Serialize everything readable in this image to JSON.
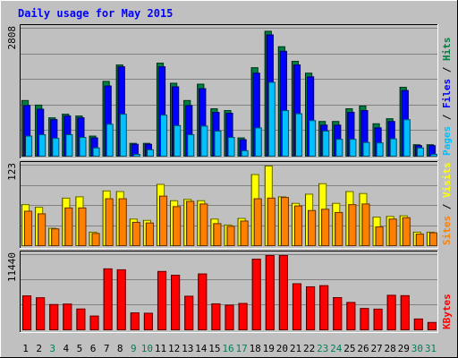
{
  "title": "Daily usage for May 2015",
  "colors": {
    "background": "#C0C0C0",
    "frame": "#7F7F7F",
    "title": "#0000FF",
    "hits_bar": "#008040",
    "files_bar": "#0000FF",
    "pages_bar": "#00C0FF",
    "visits_bar": "#FFFF00",
    "sites_bar": "#FF8000",
    "kbytes_bar": "#FF0000",
    "weekend_label": "#00805C",
    "weekday_label": "#000000"
  },
  "chart_data": [
    {
      "type": "bar",
      "title": "Daily usage for May 2015",
      "panel": "hits-files-pages",
      "ylabel_parts": [
        {
          "text": "Pages",
          "color": "#00C0FF"
        },
        {
          "text": " / ",
          "color": "#000000"
        },
        {
          "text": "Files",
          "color": "#0000FF"
        },
        {
          "text": " / ",
          "color": "#000000"
        },
        {
          "text": "Hits",
          "color": "#008040"
        }
      ],
      "ymax_label": "2808",
      "ylim": [
        0,
        2808
      ],
      "categories": [
        "1",
        "2",
        "3",
        "4",
        "5",
        "6",
        "7",
        "8",
        "9",
        "10",
        "11",
        "12",
        "13",
        "14",
        "15",
        "16",
        "17",
        "18",
        "19",
        "20",
        "21",
        "22",
        "23",
        "24",
        "25",
        "26",
        "27",
        "28",
        "29",
        "30",
        "31"
      ],
      "series": [
        {
          "name": "Hits",
          "values": [
            1240,
            1140,
            860,
            940,
            900,
            460,
            1660,
            2020,
            300,
            300,
            2060,
            1620,
            1240,
            1600,
            1060,
            1020,
            420,
            1960,
            2760,
            2420,
            2100,
            1840,
            780,
            780,
            1060,
            1120,
            730,
            840,
            1530,
            270,
            270
          ]
        },
        {
          "name": "Files",
          "values": [
            1130,
            1050,
            820,
            900,
            860,
            420,
            1560,
            1980,
            280,
            280,
            1980,
            1540,
            1130,
            1500,
            980,
            960,
            380,
            1840,
            2680,
            2320,
            2020,
            1760,
            700,
            700,
            980,
            1020,
            640,
            780,
            1460,
            250,
            250
          ]
        },
        {
          "name": "Pages",
          "values": [
            460,
            490,
            410,
            490,
            430,
            200,
            720,
            940,
            60,
            160,
            920,
            690,
            490,
            680,
            570,
            430,
            140,
            640,
            1640,
            1020,
            950,
            800,
            570,
            390,
            390,
            320,
            310,
            400,
            820,
            200,
            60
          ]
        }
      ]
    },
    {
      "type": "bar",
      "panel": "visits-sites",
      "ylabel_parts": [
        {
          "text": "Sites",
          "color": "#FF8000"
        },
        {
          "text": " / ",
          "color": "#000000"
        },
        {
          "text": "Visits",
          "color": "#FFFF00"
        }
      ],
      "ymax_label": "123",
      "ylim": [
        0,
        123
      ],
      "categories": [
        "1",
        "2",
        "3",
        "4",
        "5",
        "6",
        "7",
        "8",
        "9",
        "10",
        "11",
        "12",
        "13",
        "14",
        "15",
        "16",
        "17",
        "18",
        "19",
        "20",
        "21",
        "22",
        "23",
        "24",
        "25",
        "26",
        "27",
        "28",
        "29",
        "30",
        "31"
      ],
      "series": [
        {
          "name": "Visits",
          "values": [
            64,
            60,
            28,
            74,
            76,
            22,
            85,
            84,
            42,
            40,
            95,
            70,
            72,
            70,
            42,
            33,
            43,
            110,
            123,
            76,
            66,
            80,
            96,
            66,
            84,
            81,
            45,
            46,
            47,
            22,
            22
          ]
        },
        {
          "name": "Sites",
          "values": [
            54,
            50,
            27,
            59,
            59,
            20,
            73,
            73,
            37,
            36,
            77,
            61,
            69,
            65,
            35,
            31,
            39,
            73,
            74,
            75,
            62,
            55,
            57,
            52,
            64,
            65,
            30,
            42,
            44,
            19,
            21
          ]
        }
      ]
    },
    {
      "type": "bar",
      "panel": "kbytes",
      "ylabel_parts": [
        {
          "text": "KBytes",
          "color": "#FF0000"
        }
      ],
      "ymax_label": "11440",
      "ylim": [
        0,
        11440
      ],
      "categories": [
        "1",
        "2",
        "3",
        "4",
        "5",
        "6",
        "7",
        "8",
        "9",
        "10",
        "11",
        "12",
        "13",
        "14",
        "15",
        "16",
        "17",
        "18",
        "19",
        "20",
        "21",
        "22",
        "23",
        "24",
        "25",
        "26",
        "27",
        "28",
        "29",
        "30",
        "31"
      ],
      "series": [
        {
          "name": "KBytes",
          "values": [
            5300,
            5010,
            3980,
            4050,
            3300,
            2230,
            9410,
            9270,
            2710,
            2660,
            9010,
            8440,
            5250,
            8640,
            4090,
            3890,
            4150,
            10880,
            11440,
            11430,
            7150,
            6680,
            6850,
            5040,
            4300,
            3380,
            3280,
            5390,
            5330,
            1780,
            1250
          ]
        }
      ]
    }
  ]
}
